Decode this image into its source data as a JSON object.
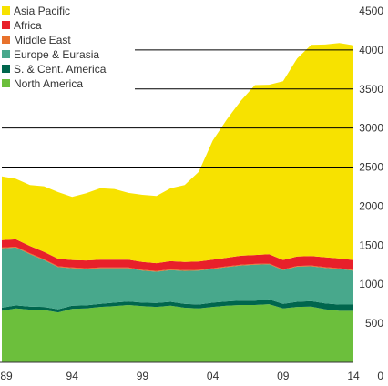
{
  "chart_data": {
    "type": "area",
    "stacked": true,
    "title": "",
    "xlabel": "",
    "ylabel": "",
    "x": [
      1989,
      1990,
      1991,
      1992,
      1993,
      1994,
      1995,
      1996,
      1997,
      1998,
      1999,
      2000,
      2001,
      2002,
      2003,
      2004,
      2005,
      2006,
      2007,
      2008,
      2009,
      2010,
      2011,
      2012,
      2013,
      2014
    ],
    "x_tick_labels": [
      "89",
      "94",
      "99",
      "04",
      "09",
      "14"
    ],
    "x_tick_values": [
      1989,
      1994,
      1999,
      2004,
      2009,
      2014
    ],
    "ylim": [
      0,
      4500
    ],
    "y_ticks": [
      0,
      500,
      1000,
      1500,
      2000,
      2500,
      3000,
      3500,
      4000,
      4500
    ],
    "y_axis_position": "right",
    "grid": "partial horizontal lines",
    "legend_position": "top-left",
    "series": [
      {
        "name": "North America",
        "color": "#6cbf3c",
        "values": [
          660,
          690,
          675,
          670,
          640,
          685,
          690,
          710,
          720,
          735,
          720,
          710,
          725,
          700,
          690,
          710,
          725,
          735,
          735,
          745,
          690,
          710,
          715,
          680,
          660,
          660
        ]
      },
      {
        "name": "S. & Cent. America",
        "color": "#00664d",
        "values": [
          40,
          40,
          40,
          40,
          40,
          40,
          40,
          40,
          45,
          45,
          45,
          50,
          50,
          50,
          50,
          55,
          55,
          55,
          55,
          60,
          60,
          65,
          70,
          75,
          80,
          80
        ]
      },
      {
        "name": "Europe & Eurasia",
        "color": "#48a88c",
        "values": [
          760,
          740,
          670,
          600,
          540,
          480,
          465,
          455,
          440,
          425,
          410,
          400,
          405,
          420,
          435,
          430,
          440,
          450,
          460,
          450,
          430,
          450,
          445,
          455,
          455,
          435
        ]
      },
      {
        "name": "Middle East",
        "color": "#e8722c",
        "values": [
          10,
          10,
          10,
          10,
          10,
          10,
          10,
          10,
          10,
          10,
          10,
          10,
          10,
          10,
          10,
          10,
          10,
          10,
          10,
          10,
          10,
          10,
          10,
          10,
          10,
          10
        ]
      },
      {
        "name": "Africa",
        "color": "#e8202a",
        "values": [
          95,
          95,
          95,
          95,
          95,
          95,
          100,
          100,
          100,
          100,
          100,
          100,
          105,
          105,
          105,
          110,
          110,
          115,
          115,
          120,
          120,
          120,
          120,
          125,
          125,
          125
        ]
      },
      {
        "name": "Asia Pacific",
        "color": "#f7e200",
        "values": [
          815,
          775,
          780,
          840,
          855,
          810,
          860,
          915,
          905,
          855,
          860,
          860,
          935,
          985,
          1150,
          1525,
          1770,
          1985,
          2175,
          2170,
          2290,
          2535,
          2705,
          2725,
          2760,
          2750
        ]
      }
    ]
  }
}
